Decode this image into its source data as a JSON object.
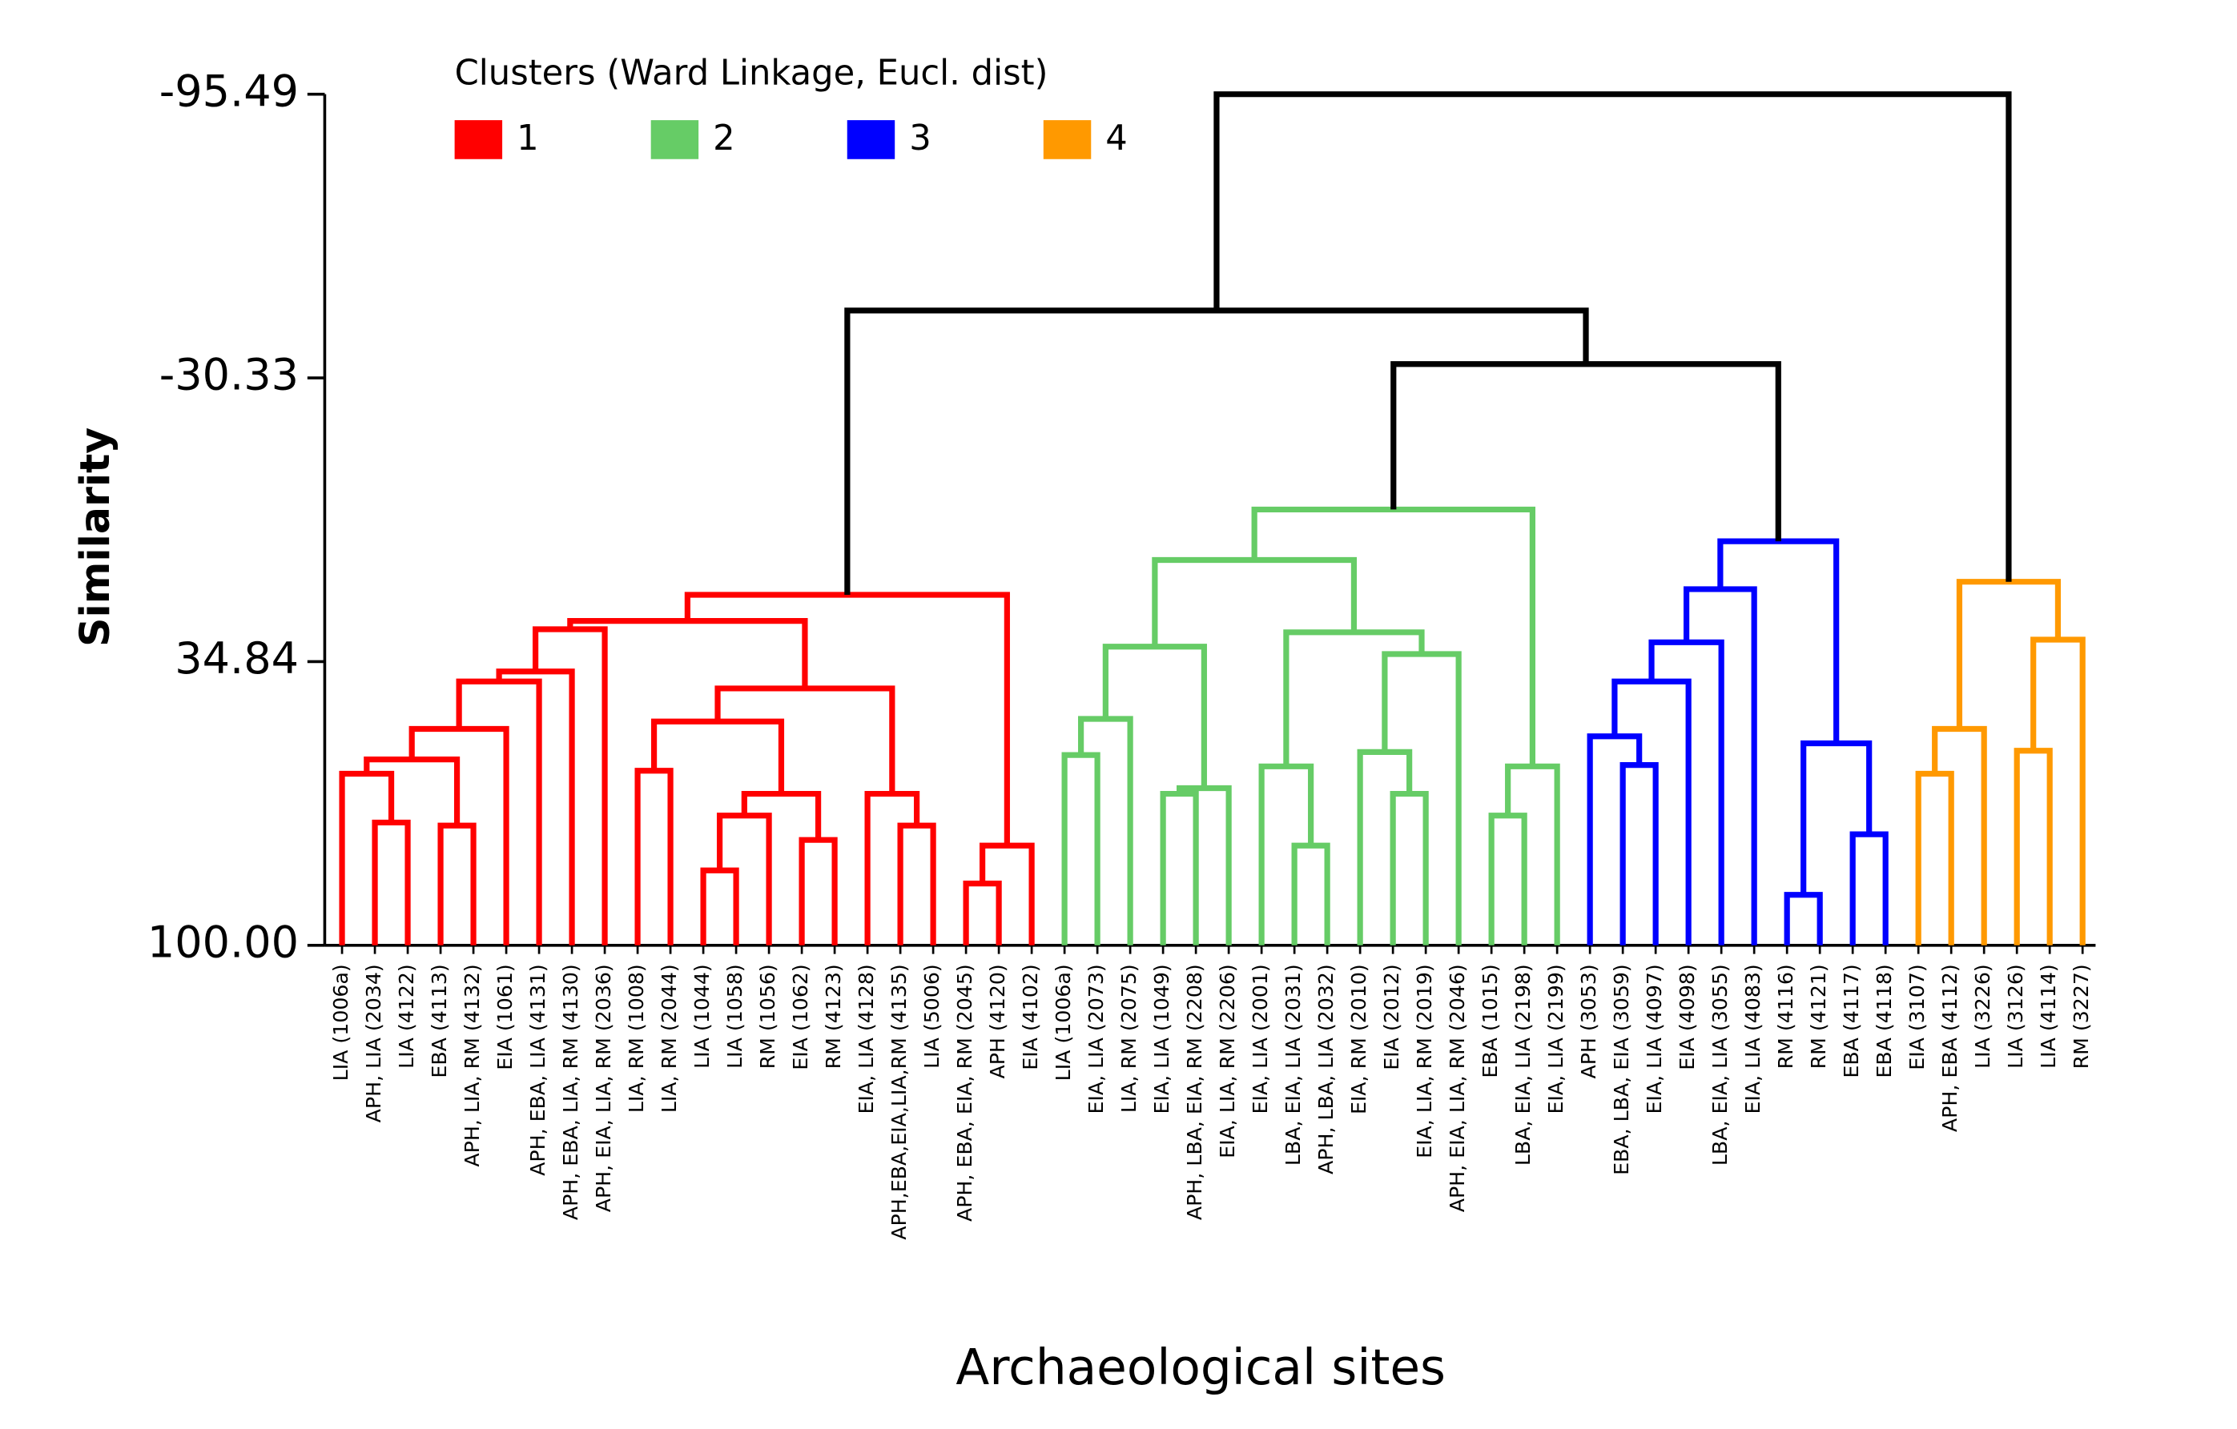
{
  "chart_data": {
    "type": "dendrogram",
    "legend_title": "Clusters (Ward Linkage, Eucl. dist)",
    "ylabel": "Similarity",
    "xlabel": "Archaeological sites",
    "ylim": [
      -95.49,
      100
    ],
    "y_reversed": true,
    "yticks": [
      -95.49,
      -30.33,
      34.84,
      {
        "value": 100,
        "label": "100.00"
      }
    ],
    "clusters": [
      {
        "name": "1",
        "color": "#ff0000"
      },
      {
        "name": "2",
        "color": "#66cc66"
      },
      {
        "name": "3",
        "color": "#0000ff"
      },
      {
        "name": "4",
        "color": "#ff9900"
      }
    ],
    "tree": {
      "height": -95.49,
      "color": "#000000",
      "children": [
        {
          "height": -45.8,
          "children": [
            {
              "height": 19.5,
              "color": "#ff0000",
              "children": [
                {
                  "height": 25.5,
                  "children": [
                    {
                      "height": 27.4,
                      "children": [
                        {
                          "height": 37.1,
                          "children": [
                            {
                              "height": 39.4,
                              "children": [
                                {
                                  "height": 50.3,
                                  "children": [
                                    {
                                      "height": 57.3,
                                      "children": [
                                        {
                                          "height": 60.6,
                                          "children": [
                                            "LIA (1006a)",
                                            {
                                              "height": 71.8,
                                              "children": [
                                                "APH, LIA (2034)",
                                                "LIA (4122)"
                                              ]
                                            }
                                          ]
                                        },
                                        {
                                          "height": 72.5,
                                          "children": [
                                            "EBA (4113)",
                                            "APH, LIA, RM (4132)"
                                          ]
                                        }
                                      ]
                                    },
                                    "EIA (1061)"
                                  ]
                                },
                                "APH, EBA, LIA (4131)"
                              ]
                            },
                            "APH, EBA, LIA, RM (4130)"
                          ]
                        },
                        "APH, EIA, LIA, RM (2036)"
                      ]
                    },
                    {
                      "height": 41.0,
                      "children": [
                        {
                          "height": 48.6,
                          "children": [
                            {
                              "height": 59.9,
                              "children": [
                                "LIA, RM (1008)",
                                "LIA, RM (2044)"
                              ]
                            },
                            {
                              "height": 65.2,
                              "children": [
                                {
                                  "height": 70.2,
                                  "children": [
                                    {
                                      "height": 82.8,
                                      "children": [
                                        "LIA (1044)",
                                        "LIA (1058)"
                                      ]
                                    },
                                    "RM (1056)"
                                  ]
                                },
                                {
                                  "height": 75.8,
                                  "children": [
                                    "EIA (1062)",
                                    "RM (4123)"
                                  ]
                                }
                              ]
                            }
                          ]
                        },
                        {
                          "height": 65.2,
                          "children": [
                            "EIA, LIA (4128)",
                            {
                              "height": 72.5,
                              "children": [
                                "APH,EBA,EIA,LIA,RM (4135)",
                                "LIA (5006)"
                              ]
                            }
                          ]
                        }
                      ]
                    }
                  ]
                },
                {
                  "height": 77.1,
                  "children": [
                    {
                      "height": 85.8,
                      "children": [
                        "APH, EBA, EIA, RM (2045)",
                        "APH (4120)"
                      ]
                    },
                    "EIA (4102)"
                  ]
                }
              ]
            },
            {
              "height": -33.5,
              "children": [
                {
                  "height": -0.1,
                  "color": "#66cc66",
                  "children": [
                    {
                      "height": 11.5,
                      "children": [
                        {
                          "height": 31.4,
                          "children": [
                            {
                              "height": 48.0,
                              "children": [
                                {
                                  "height": 56.3,
                                  "children": [
                                    "LIA (1006a)",
                                    "EIA, LIA (2073)"
                                  ]
                                },
                                "LIA, RM (2075)"
                              ]
                            },
                            {
                              "height": 63.9,
                              "children": [
                                {
                                  "height": 65.2,
                                  "children": [
                                    "EIA, LIA (1049)",
                                    "APH, LBA, EIA, RM (2208)"
                                  ]
                                },
                                "EIA, LIA, RM (2206)"
                              ]
                            }
                          ]
                        },
                        {
                          "height": 28.1,
                          "children": [
                            {
                              "height": 58.9,
                              "children": [
                                "EIA, LIA (2001)",
                                {
                                  "height": 77.1,
                                  "children": [
                                    "LBA, EIA, LIA (2031)",
                                    "APH, LBA, LIA (2032)"
                                  ]
                                }
                              ]
                            },
                            {
                              "height": 33.1,
                              "children": [
                                {
                                  "height": 55.6,
                                  "children": [
                                    "EIA, RM (2010)",
                                    {
                                      "height": 65.2,
                                      "children": [
                                        "EIA (2012)",
                                        "EIA, LIA, RM (2019)"
                                      ]
                                    }
                                  ]
                                },
                                "APH, EIA, LIA, RM (2046)"
                              ]
                            }
                          ]
                        }
                      ]
                    },
                    {
                      "height": 58.9,
                      "children": [
                        {
                          "height": 70.2,
                          "children": [
                            "EBA (1015)",
                            "LBA, EIA, LIA (2198)"
                          ]
                        },
                        "EIA, LIA (2199)"
                      ]
                    }
                  ]
                },
                {
                  "height": 7.2,
                  "color": "#0000ff",
                  "children": [
                    {
                      "height": 18.2,
                      "children": [
                        {
                          "height": 30.4,
                          "children": [
                            {
                              "height": 39.4,
                              "children": [
                                {
                                  "height": 52.0,
                                  "children": [
                                    "APH (3053)",
                                    {
                                      "height": 58.6,
                                      "children": [
                                        "EBA, LBA, EIA (3059)",
                                        "EIA, LIA (4097)"
                                      ]
                                    }
                                  ]
                                },
                                "EIA (4098)"
                              ]
                            },
                            "LBA, EIA, LIA (3055)"
                          ]
                        },
                        "EIA, LIA (4083)"
                      ]
                    },
                    {
                      "height": 53.6,
                      "children": [
                        {
                          "height": 88.4,
                          "children": [
                            "RM (4116)",
                            "RM (4121)"
                          ]
                        },
                        {
                          "height": 74.5,
                          "children": [
                            "EBA (4117)",
                            "EBA (4118)"
                          ]
                        }
                      ]
                    }
                  ]
                }
              ]
            }
          ]
        },
        {
          "height": 16.5,
          "color": "#ff9900",
          "children": [
            {
              "height": 50.3,
              "children": [
                {
                  "height": 60.6,
                  "children": [
                    "EIA (3107)",
                    "APH, EBA (4112)"
                  ]
                },
                "LIA (3226)"
              ]
            },
            {
              "height": 29.8,
              "children": [
                {
                  "height": 55.3,
                  "children": [
                    "LIA (3126)",
                    "LIA (4114)"
                  ]
                },
                "RM (3227)"
              ]
            }
          ]
        }
      ]
    }
  }
}
